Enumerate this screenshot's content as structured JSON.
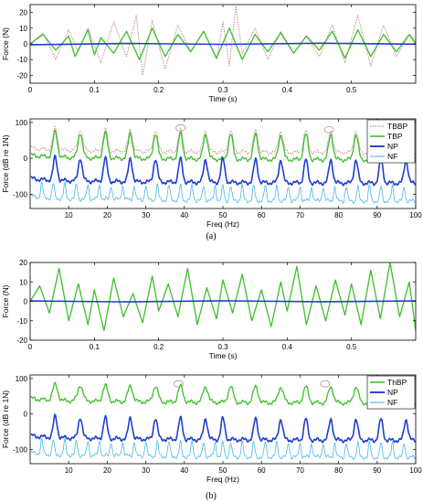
{
  "figure": {
    "label_a": "(a)",
    "label_b": "(b)"
  },
  "chart_data": [
    {
      "id": "a_time",
      "type": "line",
      "xlabel": "Time (s)",
      "ylabel": "Force (N)",
      "xlim": [
        0,
        0.6
      ],
      "ylim": [
        -25,
        25
      ],
      "xticks": [
        0,
        0.1,
        0.2,
        0.3,
        0.4,
        0.5
      ],
      "xtick_labels": [
        "0",
        "0.1",
        "0.2",
        "0.3",
        "0.4",
        "0.5"
      ],
      "yticks": [
        -20,
        -10,
        0,
        10,
        20
      ],
      "ytick_labels": [
        "-20",
        "-10",
        "0",
        "10",
        "20"
      ],
      "grid": false,
      "series": [
        {
          "key": "TBBP",
          "color": "#c98c8c",
          "dash": "1.5,1.2",
          "width": 1.0,
          "x": [
            0.0,
            0.02,
            0.04,
            0.06,
            0.075,
            0.09,
            0.11,
            0.13,
            0.15,
            0.165,
            0.175,
            0.19,
            0.21,
            0.23,
            0.25,
            0.27,
            0.29,
            0.3,
            0.31,
            0.32,
            0.33,
            0.35,
            0.37,
            0.39,
            0.41,
            0.43,
            0.45,
            0.47,
            0.49,
            0.51,
            0.53,
            0.55,
            0.57,
            0.59,
            0.6
          ],
          "y": [
            0,
            7,
            -10,
            9,
            -5,
            10,
            -12,
            14,
            -8,
            18,
            -20,
            15,
            -16,
            12,
            -5,
            8,
            -10,
            14,
            -14,
            24,
            -6,
            10,
            -10,
            8,
            -6,
            5,
            -8,
            12,
            -12,
            18,
            -14,
            12,
            -8,
            6,
            2
          ]
        },
        {
          "key": "TBP",
          "color": "#3dbf2a",
          "dash": "",
          "width": 1.3,
          "x": [
            0.0,
            0.02,
            0.04,
            0.06,
            0.07,
            0.09,
            0.1,
            0.11,
            0.13,
            0.15,
            0.17,
            0.19,
            0.21,
            0.23,
            0.25,
            0.27,
            0.29,
            0.31,
            0.33,
            0.35,
            0.37,
            0.39,
            0.41,
            0.43,
            0.45,
            0.47,
            0.49,
            0.51,
            0.53,
            0.55,
            0.57,
            0.59,
            0.6
          ],
          "y": [
            0,
            6,
            -4,
            5,
            -8,
            9,
            -7,
            4,
            -6,
            8,
            -10,
            10,
            -8,
            6,
            -5,
            8,
            -9,
            10,
            -10,
            6,
            -5,
            7,
            -6,
            5,
            -4,
            8,
            -9,
            9,
            -8,
            6,
            -5,
            6,
            0
          ]
        },
        {
          "key": "NP",
          "color": "#1f3fd0",
          "dash": "",
          "width": 1.6,
          "x": [
            0.0,
            0.15,
            0.3,
            0.45,
            0.6
          ],
          "y": [
            -0.5,
            0.3,
            -0.3,
            0.4,
            -0.2
          ]
        }
      ]
    },
    {
      "id": "a_freq",
      "type": "line",
      "xlabel": "Freq (Hz)",
      "ylabel": "Force (dB re 1N)",
      "xlim": [
        0,
        100
      ],
      "ylim": [
        -140,
        110
      ],
      "xticks": [
        10,
        20,
        30,
        40,
        50,
        60,
        70,
        80,
        90,
        100
      ],
      "xtick_labels": [
        "10",
        "20",
        "30",
        "40",
        "50",
        "60",
        "70",
        "80",
        "90",
        "100"
      ],
      "yticks": [
        -100,
        0,
        100
      ],
      "ytick_labels": [
        "-100",
        "0",
        "100"
      ],
      "grid": false,
      "legend": {
        "position": "top-right",
        "entries": [
          "TBBP",
          "TBP",
          "NP",
          "NF"
        ]
      },
      "series": [
        {
          "key": "TBBP",
          "label": "TBBP",
          "color": "#c98c8c",
          "dash": "1.5,1.2",
          "width": 1.0,
          "base": 30,
          "peak_h": 60,
          "peak_w": 0.8,
          "peaks": [
            6.5,
            13,
            19.5,
            26,
            32.5,
            39,
            45.5,
            52,
            58.5,
            65,
            71.5,
            78,
            84.5,
            91,
            97.5
          ]
        },
        {
          "key": "TBP",
          "label": "TBP",
          "color": "#3dbf2a",
          "dash": "",
          "width": 1.3,
          "base": 10,
          "peak_h": 70,
          "peak_w": 0.8,
          "peaks": [
            6.5,
            13,
            19.5,
            26,
            32.5,
            39,
            45.5,
            52,
            58.5,
            65,
            71.5,
            78,
            84.5,
            91,
            97.5
          ]
        },
        {
          "key": "NP",
          "label": "NP",
          "color": "#1f3fd0",
          "dash": "",
          "width": 1.6,
          "base": -55,
          "peak_h": 65,
          "peak_w": 0.7,
          "peaks": [
            6.5,
            13,
            19.5,
            26,
            32.5,
            39,
            45.5,
            50,
            58.5,
            65,
            71.5,
            78,
            84.5,
            91,
            97.5
          ]
        },
        {
          "key": "NF",
          "label": "NF",
          "color": "#47b8e6",
          "dash": "",
          "width": 0.8,
          "base": -105,
          "peak_h": 40,
          "peak_w": 0.4,
          "peaks": [
            3,
            6,
            9,
            12,
            15,
            18,
            21,
            24,
            27,
            30,
            33,
            36,
            39,
            42,
            45,
            48,
            50,
            52,
            55,
            58,
            61,
            64,
            67,
            70,
            73,
            76,
            79,
            82,
            85,
            88,
            91,
            94,
            97
          ]
        }
      ],
      "annotations": [
        {
          "x": 39,
          "y": 85,
          "shape": "ellipse"
        },
        {
          "x": 77.5,
          "y": 80,
          "shape": "ellipse"
        }
      ]
    },
    {
      "id": "b_time",
      "type": "line",
      "xlabel": "Time (s)",
      "ylabel": "Force (N)",
      "xlim": [
        0,
        0.6
      ],
      "ylim": [
        -20,
        20
      ],
      "xticks": [
        0,
        0.1,
        0.2,
        0.3,
        0.4,
        0.5
      ],
      "xtick_labels": [
        "0",
        "0.1",
        "0.2",
        "0.3",
        "0.4",
        "0.5"
      ],
      "yticks": [
        -20,
        -10,
        0,
        10,
        20
      ],
      "ytick_labels": [
        "-20",
        "-10",
        "0",
        "10",
        "20"
      ],
      "grid": false,
      "series": [
        {
          "key": "ThBP",
          "color": "#3dbf2a",
          "dash": "",
          "width": 1.3,
          "x": [
            0.0,
            0.015,
            0.03,
            0.045,
            0.06,
            0.075,
            0.09,
            0.1,
            0.115,
            0.13,
            0.145,
            0.16,
            0.175,
            0.19,
            0.2,
            0.215,
            0.23,
            0.245,
            0.26,
            0.275,
            0.29,
            0.3,
            0.315,
            0.33,
            0.345,
            0.36,
            0.375,
            0.39,
            0.4,
            0.415,
            0.43,
            0.445,
            0.46,
            0.475,
            0.49,
            0.5,
            0.515,
            0.53,
            0.545,
            0.56,
            0.575,
            0.59,
            0.6
          ],
          "y": [
            0,
            8,
            -6,
            17,
            -10,
            9,
            -12,
            6,
            -15,
            12,
            -8,
            4,
            -11,
            13,
            -5,
            9,
            -8,
            17,
            -12,
            7,
            -9,
            11,
            -6,
            14,
            -10,
            6,
            -13,
            10,
            -5,
            18,
            -12,
            8,
            -10,
            11,
            -7,
            9,
            -12,
            16,
            -9,
            20,
            -8,
            10,
            -15
          ]
        },
        {
          "key": "NP",
          "color": "#1f3fd0",
          "dash": "",
          "width": 1.6,
          "x": [
            0.0,
            0.15,
            0.3,
            0.45,
            0.6
          ],
          "y": [
            0.2,
            -0.3,
            0.3,
            -0.2,
            0.2
          ]
        }
      ]
    },
    {
      "id": "b_freq",
      "type": "line",
      "xlabel": "Freq (Hz)",
      "ylabel": "Force (dB re 1N)",
      "xlim": [
        0,
        100
      ],
      "ylim": [
        -140,
        110
      ],
      "xticks": [
        10,
        20,
        30,
        40,
        50,
        60,
        70,
        80,
        90,
        100
      ],
      "xtick_labels": [
        "10",
        "20",
        "30",
        "40",
        "50",
        "60",
        "70",
        "80",
        "90",
        "100"
      ],
      "yticks": [
        -100,
        0,
        100
      ],
      "ytick_labels": [
        "-100",
        "0",
        "100"
      ],
      "grid": false,
      "legend": {
        "position": "top-right",
        "entries": [
          "ThBP",
          "NP",
          "NF"
        ]
      },
      "series": [
        {
          "key": "ThBP",
          "label": "ThBP",
          "color": "#3dbf2a",
          "dash": "",
          "width": 1.3,
          "base": 45,
          "peak_h": 45,
          "peak_w": 0.9,
          "peaks": [
            6.5,
            13,
            19.5,
            26,
            32.5,
            39,
            45.5,
            52,
            58.5,
            65,
            71.5,
            78,
            84.5,
            91,
            97.5
          ]
        },
        {
          "key": "NP",
          "label": "NP",
          "color": "#1f3fd0",
          "dash": "",
          "width": 1.6,
          "base": -60,
          "peak_h": 60,
          "peak_w": 0.7,
          "peaks": [
            6.5,
            13,
            19.5,
            26,
            32.5,
            39,
            45.5,
            50,
            58.5,
            65,
            71.5,
            78,
            84.5,
            91,
            97.5
          ]
        },
        {
          "key": "NF",
          "label": "NF",
          "color": "#47b8e6",
          "dash": "",
          "width": 0.8,
          "base": -108,
          "peak_h": 40,
          "peak_w": 0.4,
          "peaks": [
            3,
            6,
            9,
            12,
            15,
            18,
            21,
            24,
            27,
            30,
            33,
            36,
            39,
            42,
            45,
            48,
            50,
            52,
            55,
            58,
            61,
            64,
            67,
            70,
            73,
            76,
            79,
            82,
            85,
            88,
            91,
            94,
            97
          ]
        }
      ],
      "annotations": [
        {
          "x": 38.5,
          "y": 85,
          "shape": "ellipse"
        },
        {
          "x": 76.5,
          "y": 85,
          "shape": "ellipse"
        }
      ]
    }
  ]
}
